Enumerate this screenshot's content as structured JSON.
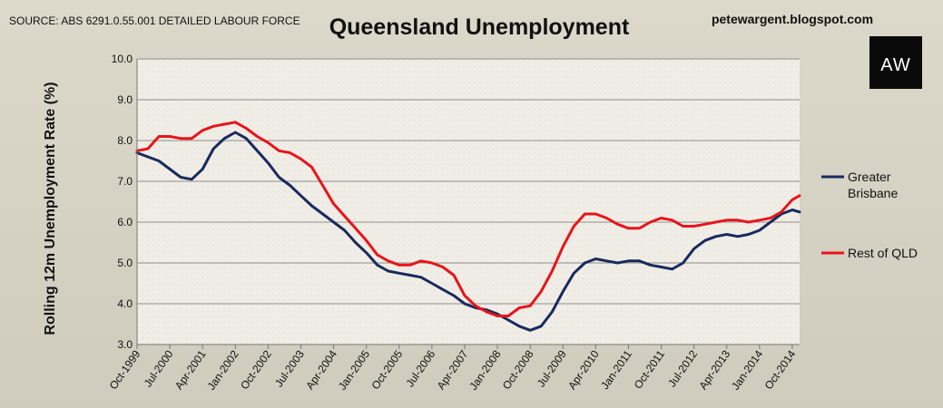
{
  "source_note": "SOURCE: ABS 6291.0.55.001 DETAILED LABOUR FORCE",
  "site": "petewargent.blogspot.com",
  "logo_text": "AW",
  "colors": {
    "brisbane": "#1a2a5e",
    "rest_qld": "#e8141b",
    "background": "#d9d5c7",
    "plot": "#f1efe7"
  },
  "chart_data": {
    "type": "line",
    "title": "Queensland Unemployment",
    "ylabel": "Rolling 12m Unemployment Rate (%)",
    "xlabel": "",
    "ylim": [
      3.0,
      10.0
    ],
    "yticks": [
      "3.0",
      "4.0",
      "5.0",
      "6.0",
      "7.0",
      "8.0",
      "9.0",
      "10.0"
    ],
    "x_range": [
      "Oct-1999",
      "Dec-2014"
    ],
    "xticks": [
      "Oct-1999",
      "Jul-2000",
      "Apr-2001",
      "Jan-2002",
      "Oct-2002",
      "Jul-2003",
      "Apr-2004",
      "Jan-2005",
      "Oct-2005",
      "Jul-2006",
      "Apr-2007",
      "Jan-2008",
      "Oct-2008",
      "Jul-2009",
      "Apr-2010",
      "Jan-2011",
      "Oct-2011",
      "Jul-2012",
      "Apr-2013",
      "Jan-2014",
      "Oct-2014"
    ],
    "grid": true,
    "legend_position": "right",
    "series": [
      {
        "name": "Greater Brisbane",
        "color": "#1a2a5e",
        "points": [
          [
            "1999-10",
            7.7
          ],
          [
            "2000-01",
            7.6
          ],
          [
            "2000-04",
            7.5
          ],
          [
            "2000-07",
            7.3
          ],
          [
            "2000-10",
            7.1
          ],
          [
            "2001-01",
            7.05
          ],
          [
            "2001-04",
            7.3
          ],
          [
            "2001-07",
            7.8
          ],
          [
            "2001-10",
            8.05
          ],
          [
            "2002-01",
            8.2
          ],
          [
            "2002-04",
            8.05
          ],
          [
            "2002-07",
            7.75
          ],
          [
            "2002-10",
            7.45
          ],
          [
            "2003-01",
            7.1
          ],
          [
            "2003-04",
            6.9
          ],
          [
            "2003-07",
            6.65
          ],
          [
            "2003-10",
            6.4
          ],
          [
            "2004-01",
            6.2
          ],
          [
            "2004-04",
            6.0
          ],
          [
            "2004-07",
            5.8
          ],
          [
            "2004-10",
            5.5
          ],
          [
            "2005-01",
            5.25
          ],
          [
            "2005-04",
            4.95
          ],
          [
            "2005-07",
            4.8
          ],
          [
            "2005-10",
            4.75
          ],
          [
            "2006-01",
            4.7
          ],
          [
            "2006-04",
            4.65
          ],
          [
            "2006-07",
            4.5
          ],
          [
            "2006-10",
            4.35
          ],
          [
            "2007-01",
            4.2
          ],
          [
            "2007-04",
            4.0
          ],
          [
            "2007-07",
            3.9
          ],
          [
            "2007-10",
            3.85
          ],
          [
            "2008-01",
            3.75
          ],
          [
            "2008-04",
            3.6
          ],
          [
            "2008-07",
            3.45
          ],
          [
            "2008-10",
            3.35
          ],
          [
            "2009-01",
            3.45
          ],
          [
            "2009-04",
            3.8
          ],
          [
            "2009-07",
            4.3
          ],
          [
            "2009-10",
            4.75
          ],
          [
            "2010-01",
            5.0
          ],
          [
            "2010-04",
            5.1
          ],
          [
            "2010-07",
            5.05
          ],
          [
            "2010-10",
            5.0
          ],
          [
            "2011-01",
            5.05
          ],
          [
            "2011-04",
            5.05
          ],
          [
            "2011-07",
            4.95
          ],
          [
            "2011-10",
            4.9
          ],
          [
            "2012-01",
            4.85
          ],
          [
            "2012-04",
            5.0
          ],
          [
            "2012-07",
            5.35
          ],
          [
            "2012-10",
            5.55
          ],
          [
            "2013-01",
            5.65
          ],
          [
            "2013-04",
            5.7
          ],
          [
            "2013-07",
            5.65
          ],
          [
            "2013-10",
            5.7
          ],
          [
            "2014-01",
            5.8
          ],
          [
            "2014-04",
            6.0
          ],
          [
            "2014-07",
            6.2
          ],
          [
            "2014-10",
            6.3
          ],
          [
            "2014-12",
            6.25
          ]
        ]
      },
      {
        "name": "Rest of QLD",
        "color": "#e8141b",
        "points": [
          [
            "1999-10",
            7.75
          ],
          [
            "2000-01",
            7.8
          ],
          [
            "2000-04",
            8.1
          ],
          [
            "2000-07",
            8.1
          ],
          [
            "2000-10",
            8.05
          ],
          [
            "2001-01",
            8.05
          ],
          [
            "2001-04",
            8.25
          ],
          [
            "2001-07",
            8.35
          ],
          [
            "2001-10",
            8.4
          ],
          [
            "2002-01",
            8.45
          ],
          [
            "2002-04",
            8.3
          ],
          [
            "2002-07",
            8.1
          ],
          [
            "2002-10",
            7.95
          ],
          [
            "2003-01",
            7.75
          ],
          [
            "2003-04",
            7.7
          ],
          [
            "2003-07",
            7.55
          ],
          [
            "2003-10",
            7.35
          ],
          [
            "2004-01",
            6.9
          ],
          [
            "2004-04",
            6.45
          ],
          [
            "2004-07",
            6.15
          ],
          [
            "2004-10",
            5.85
          ],
          [
            "2005-01",
            5.55
          ],
          [
            "2005-04",
            5.2
          ],
          [
            "2005-07",
            5.05
          ],
          [
            "2005-10",
            4.95
          ],
          [
            "2006-01",
            4.95
          ],
          [
            "2006-04",
            5.05
          ],
          [
            "2006-07",
            5.0
          ],
          [
            "2006-10",
            4.9
          ],
          [
            "2007-01",
            4.7
          ],
          [
            "2007-04",
            4.2
          ],
          [
            "2007-07",
            3.95
          ],
          [
            "2007-10",
            3.8
          ],
          [
            "2008-01",
            3.7
          ],
          [
            "2008-04",
            3.7
          ],
          [
            "2008-07",
            3.9
          ],
          [
            "2008-10",
            3.95
          ],
          [
            "2009-01",
            4.3
          ],
          [
            "2009-04",
            4.8
          ],
          [
            "2009-07",
            5.4
          ],
          [
            "2009-10",
            5.9
          ],
          [
            "2010-01",
            6.2
          ],
          [
            "2010-04",
            6.2
          ],
          [
            "2010-07",
            6.1
          ],
          [
            "2010-10",
            5.95
          ],
          [
            "2011-01",
            5.85
          ],
          [
            "2011-04",
            5.85
          ],
          [
            "2011-07",
            6.0
          ],
          [
            "2011-10",
            6.1
          ],
          [
            "2012-01",
            6.05
          ],
          [
            "2012-04",
            5.9
          ],
          [
            "2012-07",
            5.9
          ],
          [
            "2012-10",
            5.95
          ],
          [
            "2013-01",
            6.0
          ],
          [
            "2013-04",
            6.05
          ],
          [
            "2013-07",
            6.05
          ],
          [
            "2013-10",
            6.0
          ],
          [
            "2014-01",
            6.05
          ],
          [
            "2014-04",
            6.1
          ],
          [
            "2014-07",
            6.25
          ],
          [
            "2014-10",
            6.55
          ],
          [
            "2014-12",
            6.65
          ]
        ]
      }
    ]
  }
}
